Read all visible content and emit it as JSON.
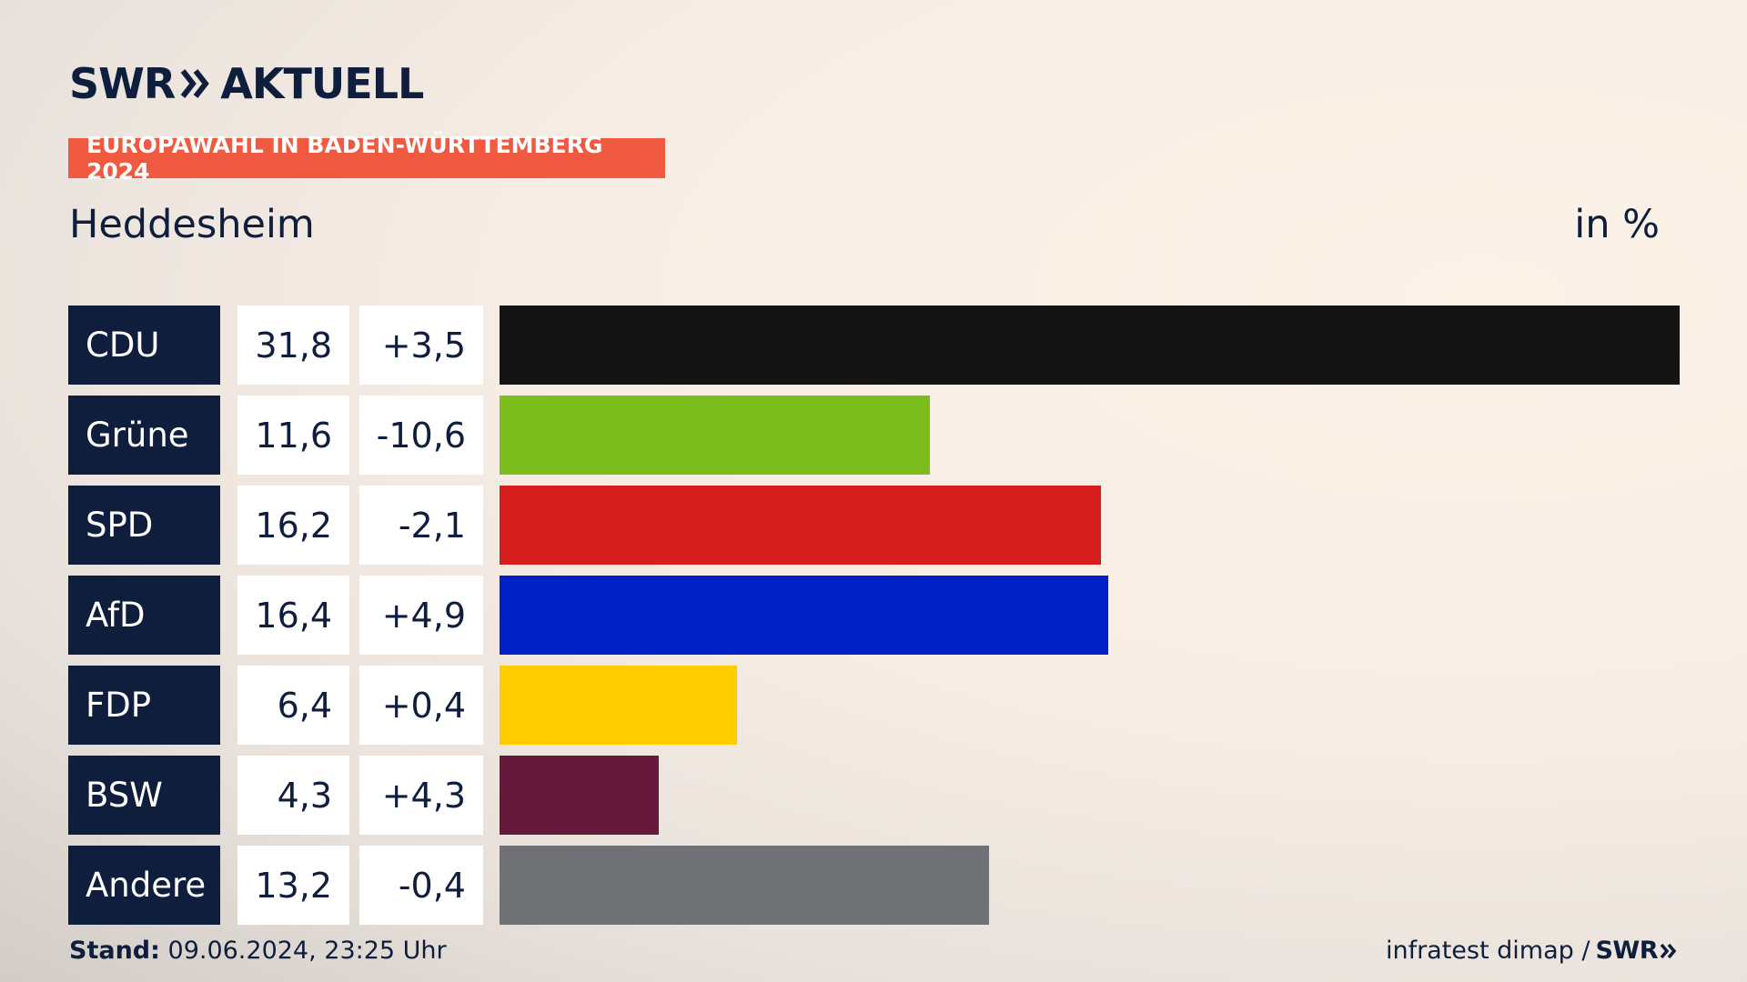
{
  "header": {
    "logo_swr": "SWR",
    "logo_aktuell": "AKTUELL",
    "badge": "EUROPAWAHL IN BADEN-WÜRTTEMBERG 2024",
    "region": "Heddesheim",
    "unit": "in %"
  },
  "footer": {
    "stand_label": "Stand:",
    "stand_value": "09.06.2024, 23:25 Uhr",
    "source": "infratest dimap /",
    "source_logo": "SWR"
  },
  "chart_data": {
    "type": "bar",
    "orientation": "horizontal",
    "categories": [
      "CDU",
      "Grüne",
      "SPD",
      "AfD",
      "FDP",
      "BSW",
      "Andere"
    ],
    "values": [
      31.8,
      11.6,
      16.2,
      16.4,
      6.4,
      4.3,
      13.2
    ],
    "value_labels": [
      "31,8",
      "11,6",
      "16,2",
      "16,4",
      "6,4",
      "4,3",
      "13,2"
    ],
    "changes": [
      "+3,5",
      "-10,6",
      "-2,1",
      "+4,9",
      "+0,4",
      "+4,3",
      "-0,4"
    ],
    "colors": [
      "#141414",
      "#7bbd1c",
      "#d61e1e",
      "#0020c6",
      "#ffcc00",
      "#651a3c",
      "#707174"
    ],
    "xlim": [
      0,
      31.8
    ]
  }
}
